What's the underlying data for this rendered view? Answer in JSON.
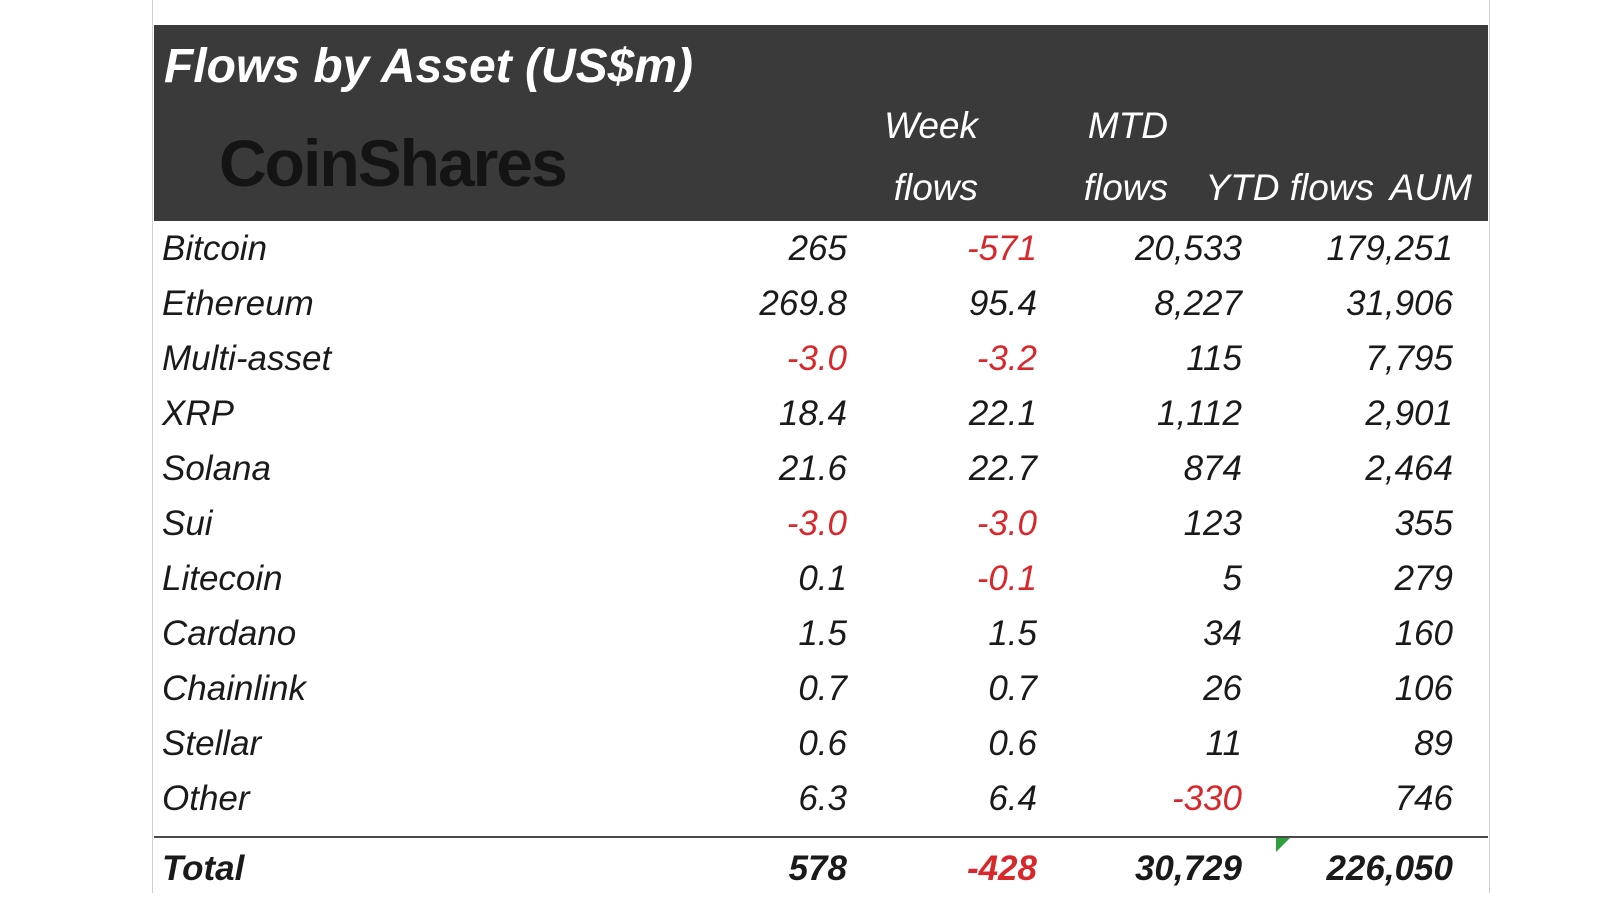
{
  "header": {
    "title": "Flows by Asset (US$m)",
    "logo_text": "CoinShares",
    "columns": [
      {
        "line1": "Week",
        "line2": "flows"
      },
      {
        "line1": "MTD",
        "line2": "flows"
      },
      {
        "line1": "",
        "line2": "YTD flows"
      },
      {
        "line1": "",
        "line2": "AUM"
      }
    ]
  },
  "colors": {
    "header_bg": "#3a3a3a",
    "negative": "#d8282b",
    "text": "#1a1a1a"
  },
  "chart_data": {
    "type": "table",
    "title": "Flows by Asset (US$m)",
    "columns": [
      "Week flows",
      "MTD flows",
      "YTD flows",
      "AUM"
    ],
    "rows": [
      {
        "asset": "Bitcoin",
        "week": "265",
        "mtd": "-571",
        "ytd": "20,533",
        "aum": "179,251"
      },
      {
        "asset": "Ethereum",
        "week": "269.8",
        "mtd": "95.4",
        "ytd": "8,227",
        "aum": "31,906"
      },
      {
        "asset": "Multi-asset",
        "week": "-3.0",
        "mtd": "-3.2",
        "ytd": "115",
        "aum": "7,795"
      },
      {
        "asset": "XRP",
        "week": "18.4",
        "mtd": "22.1",
        "ytd": "1,112",
        "aum": "2,901"
      },
      {
        "asset": "Solana",
        "week": "21.6",
        "mtd": "22.7",
        "ytd": "874",
        "aum": "2,464"
      },
      {
        "asset": "Sui",
        "week": "-3.0",
        "mtd": "-3.0",
        "ytd": "123",
        "aum": "355"
      },
      {
        "asset": "Litecoin",
        "week": "0.1",
        "mtd": "-0.1",
        "ytd": "5",
        "aum": "279"
      },
      {
        "asset": "Cardano",
        "week": "1.5",
        "mtd": "1.5",
        "ytd": "34",
        "aum": "160"
      },
      {
        "asset": "Chainlink",
        "week": "0.7",
        "mtd": "0.7",
        "ytd": "26",
        "aum": "106"
      },
      {
        "asset": "Stellar",
        "week": "0.6",
        "mtd": "0.6",
        "ytd": "11",
        "aum": "89"
      },
      {
        "asset": "Other",
        "week": "6.3",
        "mtd": "6.4",
        "ytd": "-330",
        "aum": "746"
      }
    ],
    "total": {
      "asset": "Total",
      "week": "578",
      "mtd": "-428",
      "ytd": "30,729",
      "aum": "226,050"
    }
  }
}
